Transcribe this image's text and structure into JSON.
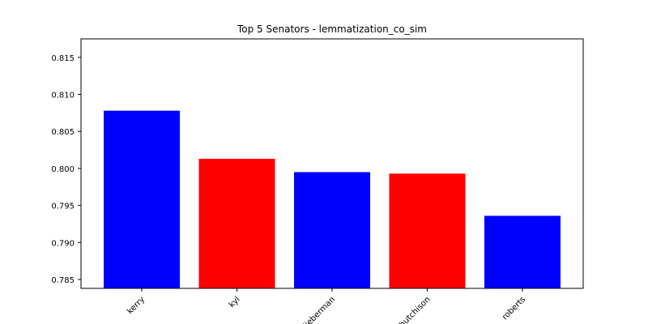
{
  "chart_data": {
    "type": "bar",
    "title": "Top 5 Senators - lemmatization_co_sim",
    "xlabel": "",
    "ylabel": "",
    "categories": [
      "kerry",
      "kyl",
      "lieberman",
      "hutchison",
      "roberts"
    ],
    "values": [
      0.8078,
      0.8013,
      0.7995,
      0.7993,
      0.7936
    ],
    "bar_colors": [
      "#0000ff",
      "#ff0000",
      "#0000ff",
      "#ff0000",
      "#0000ff"
    ],
    "ylim": [
      0.7838,
      0.8175
    ],
    "yticks": [
      0.785,
      0.79,
      0.795,
      0.8,
      0.805,
      0.81,
      0.815
    ],
    "ytick_labels": [
      "0.785",
      "0.790",
      "0.795",
      "0.800",
      "0.805",
      "0.810",
      "0.815"
    ],
    "xtick_rotation_deg": 45,
    "grid": false,
    "legend": "none"
  }
}
